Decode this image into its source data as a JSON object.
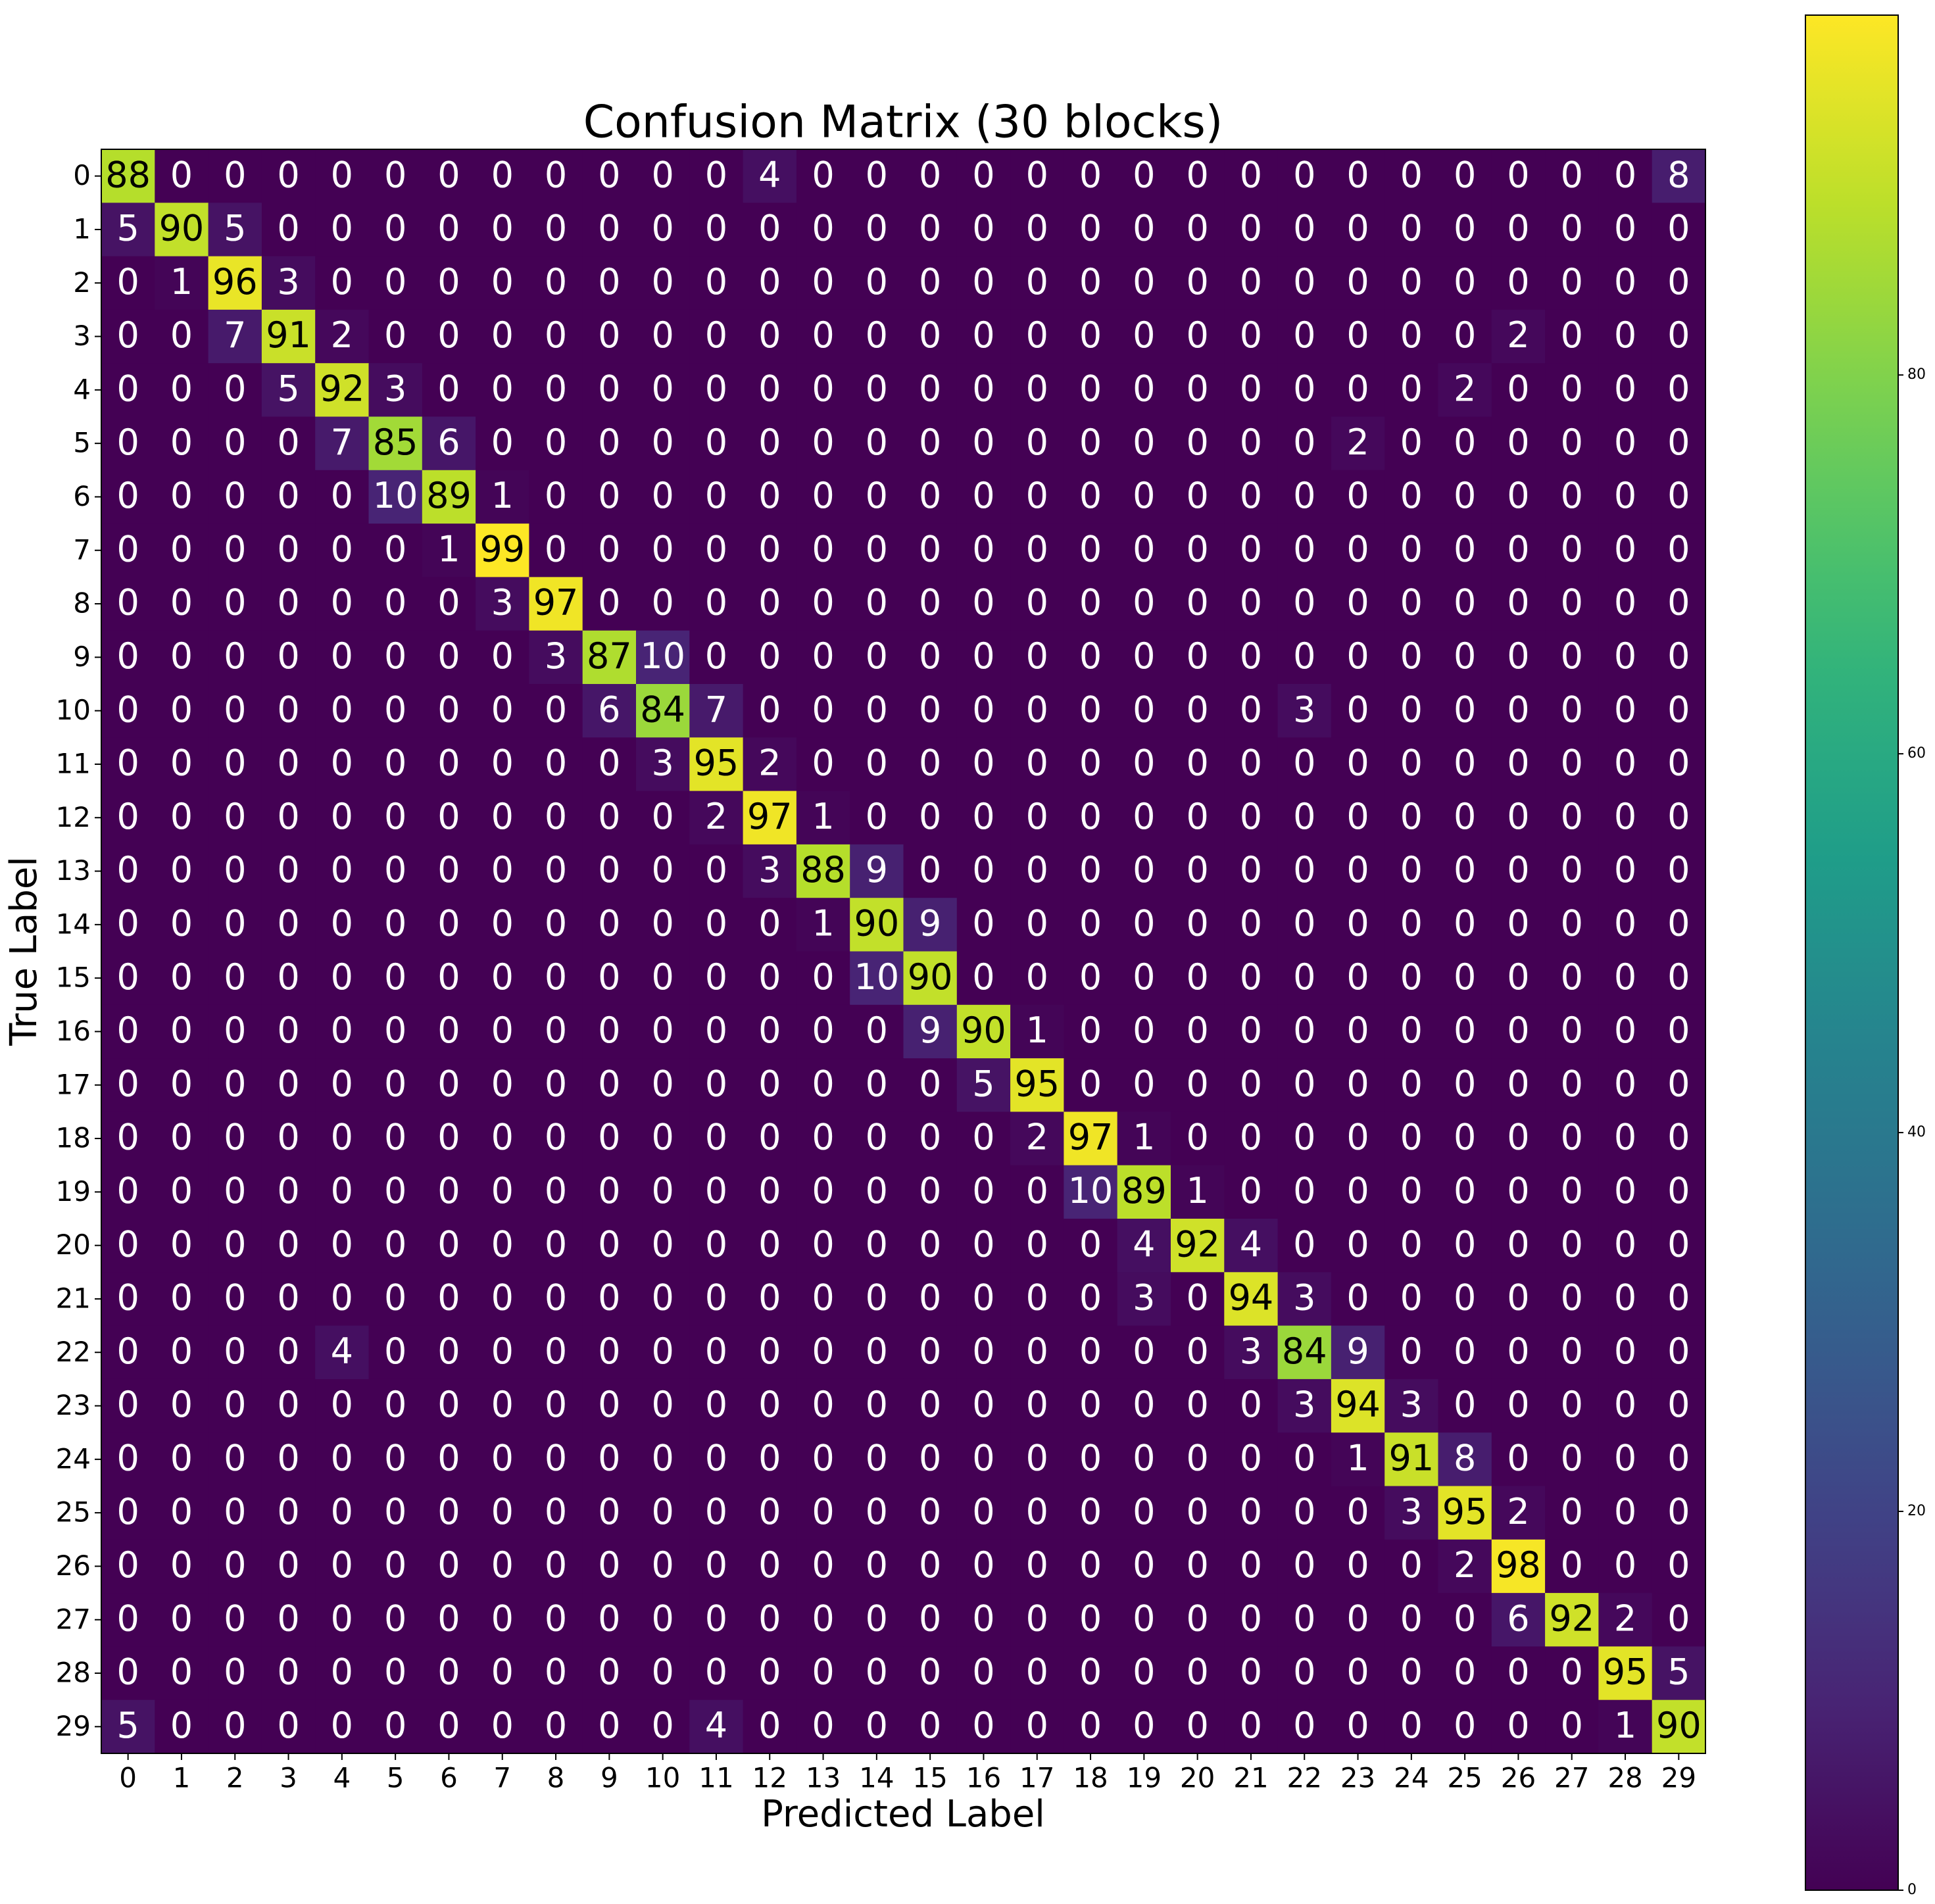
{
  "chart_data": {
    "type": "heatmap",
    "title": "Confusion Matrix (30 blocks)",
    "x_label": "Predicted Label",
    "y_label": "True Label",
    "x_categories": [
      0,
      1,
      2,
      3,
      4,
      5,
      6,
      7,
      8,
      9,
      10,
      11,
      12,
      13,
      14,
      15,
      16,
      17,
      18,
      19,
      20,
      21,
      22,
      23,
      24,
      25,
      26,
      27,
      28,
      29
    ],
    "y_categories": [
      0,
      1,
      2,
      3,
      4,
      5,
      6,
      7,
      8,
      9,
      10,
      11,
      12,
      13,
      14,
      15,
      16,
      17,
      18,
      19,
      20,
      21,
      22,
      23,
      24,
      25,
      26,
      27,
      28,
      29
    ],
    "colormap": "viridis",
    "clim": [
      0,
      99
    ],
    "cticks": [
      0,
      20,
      40,
      60,
      80
    ],
    "values": [
      [
        88,
        0,
        0,
        0,
        0,
        0,
        0,
        0,
        0,
        0,
        0,
        0,
        4,
        0,
        0,
        0,
        0,
        0,
        0,
        0,
        0,
        0,
        0,
        0,
        0,
        0,
        0,
        0,
        0,
        8
      ],
      [
        5,
        90,
        5,
        0,
        0,
        0,
        0,
        0,
        0,
        0,
        0,
        0,
        0,
        0,
        0,
        0,
        0,
        0,
        0,
        0,
        0,
        0,
        0,
        0,
        0,
        0,
        0,
        0,
        0,
        0
      ],
      [
        0,
        1,
        96,
        3,
        0,
        0,
        0,
        0,
        0,
        0,
        0,
        0,
        0,
        0,
        0,
        0,
        0,
        0,
        0,
        0,
        0,
        0,
        0,
        0,
        0,
        0,
        0,
        0,
        0,
        0
      ],
      [
        0,
        0,
        7,
        91,
        2,
        0,
        0,
        0,
        0,
        0,
        0,
        0,
        0,
        0,
        0,
        0,
        0,
        0,
        0,
        0,
        0,
        0,
        0,
        0,
        0,
        0,
        2,
        0,
        0,
        0
      ],
      [
        0,
        0,
        0,
        5,
        92,
        3,
        0,
        0,
        0,
        0,
        0,
        0,
        0,
        0,
        0,
        0,
        0,
        0,
        0,
        0,
        0,
        0,
        0,
        0,
        0,
        2,
        0,
        0,
        0,
        0
      ],
      [
        0,
        0,
        0,
        0,
        7,
        85,
        6,
        0,
        0,
        0,
        0,
        0,
        0,
        0,
        0,
        0,
        0,
        0,
        0,
        0,
        0,
        0,
        0,
        2,
        0,
        0,
        0,
        0,
        0,
        0
      ],
      [
        0,
        0,
        0,
        0,
        0,
        10,
        89,
        1,
        0,
        0,
        0,
        0,
        0,
        0,
        0,
        0,
        0,
        0,
        0,
        0,
        0,
        0,
        0,
        0,
        0,
        0,
        0,
        0,
        0,
        0
      ],
      [
        0,
        0,
        0,
        0,
        0,
        0,
        1,
        99,
        0,
        0,
        0,
        0,
        0,
        0,
        0,
        0,
        0,
        0,
        0,
        0,
        0,
        0,
        0,
        0,
        0,
        0,
        0,
        0,
        0,
        0
      ],
      [
        0,
        0,
        0,
        0,
        0,
        0,
        0,
        3,
        97,
        0,
        0,
        0,
        0,
        0,
        0,
        0,
        0,
        0,
        0,
        0,
        0,
        0,
        0,
        0,
        0,
        0,
        0,
        0,
        0,
        0
      ],
      [
        0,
        0,
        0,
        0,
        0,
        0,
        0,
        0,
        3,
        87,
        10,
        0,
        0,
        0,
        0,
        0,
        0,
        0,
        0,
        0,
        0,
        0,
        0,
        0,
        0,
        0,
        0,
        0,
        0,
        0
      ],
      [
        0,
        0,
        0,
        0,
        0,
        0,
        0,
        0,
        0,
        6,
        84,
        7,
        0,
        0,
        0,
        0,
        0,
        0,
        0,
        0,
        0,
        0,
        3,
        0,
        0,
        0,
        0,
        0,
        0,
        0
      ],
      [
        0,
        0,
        0,
        0,
        0,
        0,
        0,
        0,
        0,
        0,
        3,
        95,
        2,
        0,
        0,
        0,
        0,
        0,
        0,
        0,
        0,
        0,
        0,
        0,
        0,
        0,
        0,
        0,
        0,
        0
      ],
      [
        0,
        0,
        0,
        0,
        0,
        0,
        0,
        0,
        0,
        0,
        0,
        2,
        97,
        1,
        0,
        0,
        0,
        0,
        0,
        0,
        0,
        0,
        0,
        0,
        0,
        0,
        0,
        0,
        0,
        0
      ],
      [
        0,
        0,
        0,
        0,
        0,
        0,
        0,
        0,
        0,
        0,
        0,
        0,
        3,
        88,
        9,
        0,
        0,
        0,
        0,
        0,
        0,
        0,
        0,
        0,
        0,
        0,
        0,
        0,
        0,
        0
      ],
      [
        0,
        0,
        0,
        0,
        0,
        0,
        0,
        0,
        0,
        0,
        0,
        0,
        0,
        1,
        90,
        9,
        0,
        0,
        0,
        0,
        0,
        0,
        0,
        0,
        0,
        0,
        0,
        0,
        0,
        0
      ],
      [
        0,
        0,
        0,
        0,
        0,
        0,
        0,
        0,
        0,
        0,
        0,
        0,
        0,
        0,
        10,
        90,
        0,
        0,
        0,
        0,
        0,
        0,
        0,
        0,
        0,
        0,
        0,
        0,
        0,
        0
      ],
      [
        0,
        0,
        0,
        0,
        0,
        0,
        0,
        0,
        0,
        0,
        0,
        0,
        0,
        0,
        0,
        9,
        90,
        1,
        0,
        0,
        0,
        0,
        0,
        0,
        0,
        0,
        0,
        0,
        0,
        0
      ],
      [
        0,
        0,
        0,
        0,
        0,
        0,
        0,
        0,
        0,
        0,
        0,
        0,
        0,
        0,
        0,
        0,
        5,
        95,
        0,
        0,
        0,
        0,
        0,
        0,
        0,
        0,
        0,
        0,
        0,
        0
      ],
      [
        0,
        0,
        0,
        0,
        0,
        0,
        0,
        0,
        0,
        0,
        0,
        0,
        0,
        0,
        0,
        0,
        0,
        2,
        97,
        1,
        0,
        0,
        0,
        0,
        0,
        0,
        0,
        0,
        0,
        0
      ],
      [
        0,
        0,
        0,
        0,
        0,
        0,
        0,
        0,
        0,
        0,
        0,
        0,
        0,
        0,
        0,
        0,
        0,
        0,
        10,
        89,
        1,
        0,
        0,
        0,
        0,
        0,
        0,
        0,
        0,
        0
      ],
      [
        0,
        0,
        0,
        0,
        0,
        0,
        0,
        0,
        0,
        0,
        0,
        0,
        0,
        0,
        0,
        0,
        0,
        0,
        0,
        4,
        92,
        4,
        0,
        0,
        0,
        0,
        0,
        0,
        0,
        0
      ],
      [
        0,
        0,
        0,
        0,
        0,
        0,
        0,
        0,
        0,
        0,
        0,
        0,
        0,
        0,
        0,
        0,
        0,
        0,
        0,
        3,
        0,
        94,
        3,
        0,
        0,
        0,
        0,
        0,
        0,
        0
      ],
      [
        0,
        0,
        0,
        0,
        4,
        0,
        0,
        0,
        0,
        0,
        0,
        0,
        0,
        0,
        0,
        0,
        0,
        0,
        0,
        0,
        0,
        3,
        84,
        9,
        0,
        0,
        0,
        0,
        0,
        0
      ],
      [
        0,
        0,
        0,
        0,
        0,
        0,
        0,
        0,
        0,
        0,
        0,
        0,
        0,
        0,
        0,
        0,
        0,
        0,
        0,
        0,
        0,
        0,
        3,
        94,
        3,
        0,
        0,
        0,
        0,
        0
      ],
      [
        0,
        0,
        0,
        0,
        0,
        0,
        0,
        0,
        0,
        0,
        0,
        0,
        0,
        0,
        0,
        0,
        0,
        0,
        0,
        0,
        0,
        0,
        0,
        1,
        91,
        8,
        0,
        0,
        0,
        0
      ],
      [
        0,
        0,
        0,
        0,
        0,
        0,
        0,
        0,
        0,
        0,
        0,
        0,
        0,
        0,
        0,
        0,
        0,
        0,
        0,
        0,
        0,
        0,
        0,
        0,
        3,
        95,
        2,
        0,
        0,
        0
      ],
      [
        0,
        0,
        0,
        0,
        0,
        0,
        0,
        0,
        0,
        0,
        0,
        0,
        0,
        0,
        0,
        0,
        0,
        0,
        0,
        0,
        0,
        0,
        0,
        0,
        0,
        2,
        98,
        0,
        0,
        0
      ],
      [
        0,
        0,
        0,
        0,
        0,
        0,
        0,
        0,
        0,
        0,
        0,
        0,
        0,
        0,
        0,
        0,
        0,
        0,
        0,
        0,
        0,
        0,
        0,
        0,
        0,
        0,
        6,
        92,
        2,
        0
      ],
      [
        0,
        0,
        0,
        0,
        0,
        0,
        0,
        0,
        0,
        0,
        0,
        0,
        0,
        0,
        0,
        0,
        0,
        0,
        0,
        0,
        0,
        0,
        0,
        0,
        0,
        0,
        0,
        0,
        95,
        5
      ],
      [
        5,
        0,
        0,
        0,
        0,
        0,
        0,
        0,
        0,
        0,
        0,
        4,
        0,
        0,
        0,
        0,
        0,
        0,
        0,
        0,
        0,
        0,
        0,
        0,
        0,
        0,
        0,
        0,
        1,
        90
      ]
    ]
  }
}
